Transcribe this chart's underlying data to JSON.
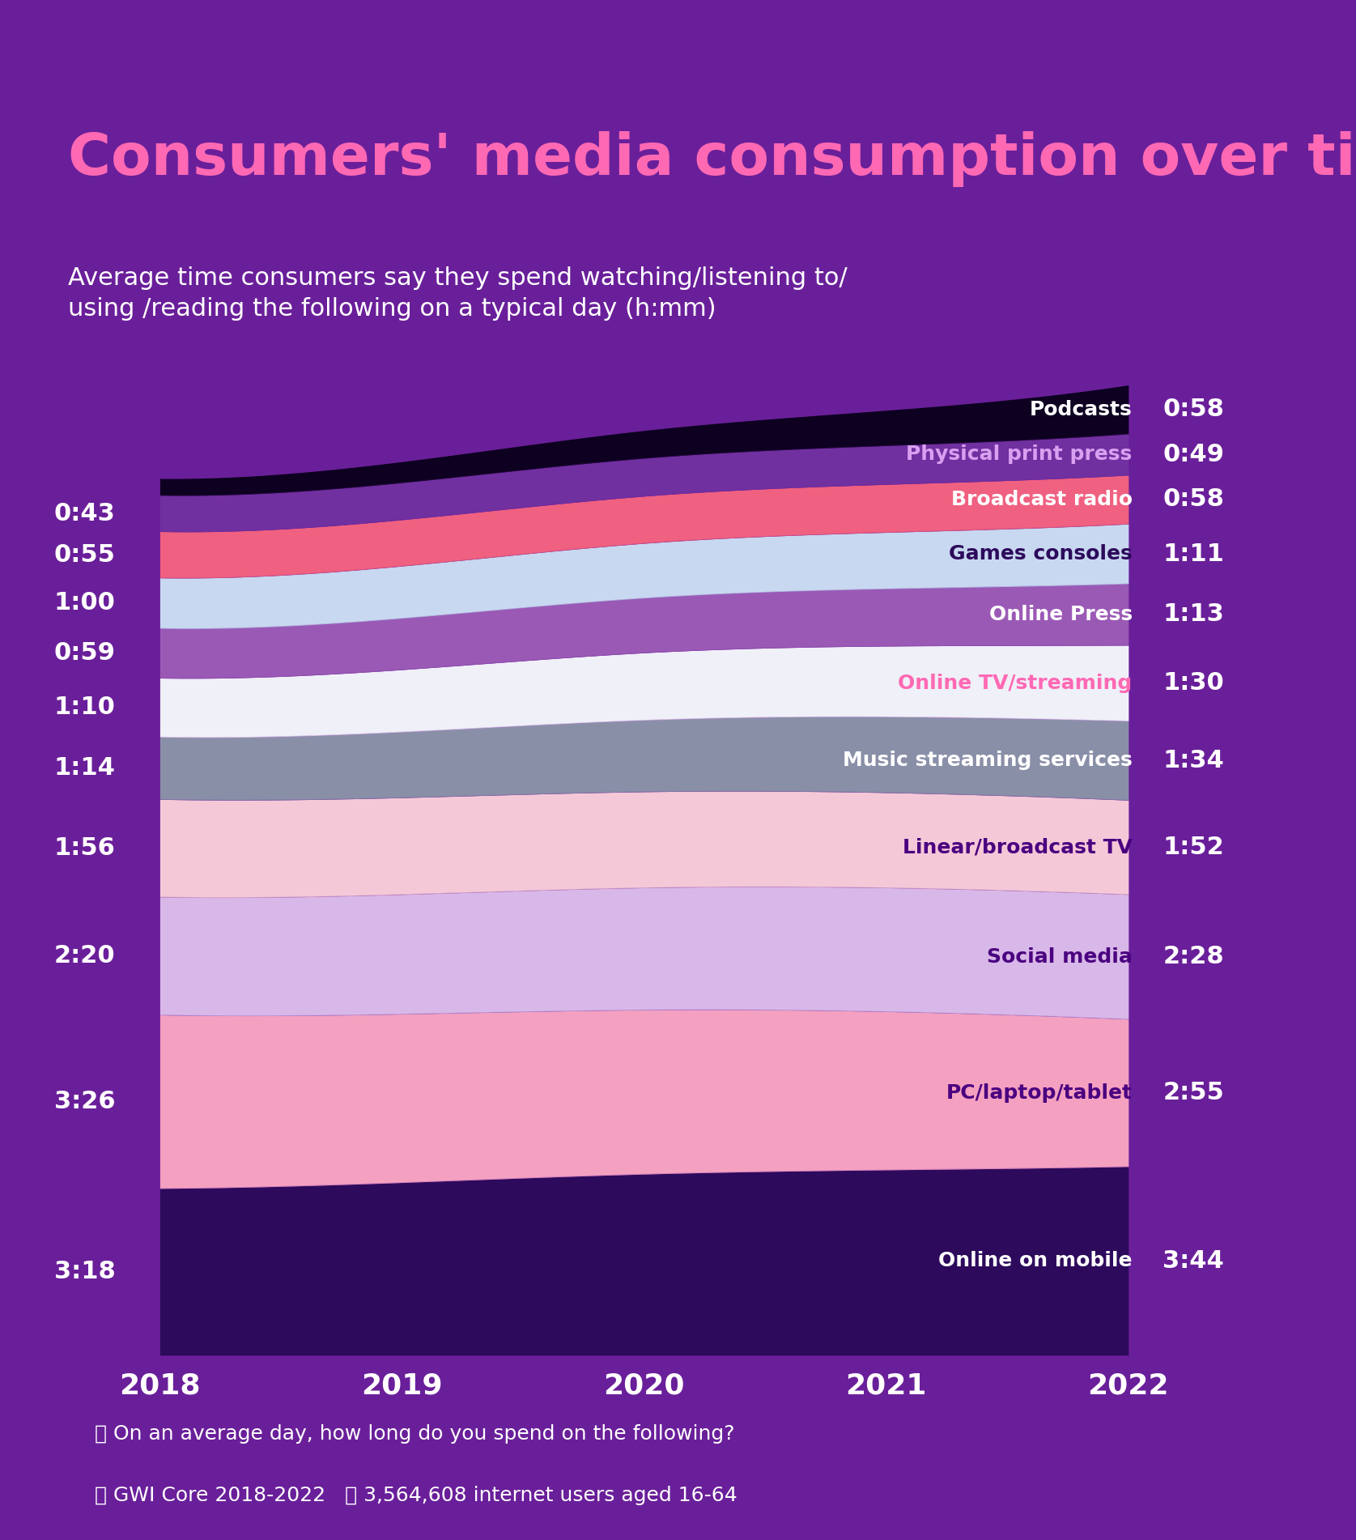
{
  "title": "Consumers' media consumption over time",
  "subtitle": "Average time consumers say they spend watching/listening to/\nusing /reading the following on a typical day (h:mm)",
  "background_color": "#6a1f9a",
  "chart_bg_color": "#6a1f9a",
  "years": [
    2018,
    2019,
    2020,
    2021,
    2022
  ],
  "layers": [
    {
      "name": "Online on mobile",
      "color": "#2d0a5c",
      "values_min": [
        198,
        205,
        215,
        220,
        224
      ],
      "label_color": "#ffffff",
      "left_label": "3:18",
      "right_label": "3:44",
      "label_text_color": "#ffffff"
    },
    {
      "name": "PC/laptop/tablet",
      "color": "#f4a0c0",
      "values_min": [
        206,
        200,
        195,
        188,
        175
      ],
      "label_color": "#4a0080",
      "left_label": "3:26",
      "right_label": "2:55",
      "label_text_color": "#4a0080"
    },
    {
      "name": "Social media",
      "color": "#d8b8e8",
      "values_min": [
        140,
        142,
        145,
        147,
        148
      ],
      "label_color": "#4a0080",
      "left_label": "2:20",
      "right_label": "2:28",
      "label_text_color": "#4a0080"
    },
    {
      "name": "Linear/broadcast TV",
      "color": "#f5c8d8",
      "values_min": [
        116,
        115,
        114,
        113,
        112
      ],
      "label_color": "#4a0080",
      "left_label": "1:56",
      "right_label": "1:52",
      "label_text_color": "#4a0080"
    },
    {
      "name": "Music streaming services",
      "color": "#8a8fa8",
      "values_min": [
        74,
        78,
        85,
        90,
        94
      ],
      "label_color": "#ffffff",
      "left_label": "1:14",
      "right_label": "1:34",
      "label_text_color": "#ffffff"
    },
    {
      "name": "Online TV/streaming",
      "color": "#f0f0f8",
      "values_min": [
        70,
        74,
        80,
        84,
        90
      ],
      "label_color": "#ff69b4",
      "left_label": "1:10",
      "right_label": "1:30",
      "label_text_color": "#ff69b4"
    },
    {
      "name": "Online Press",
      "color": "#9b59b6",
      "values_min": [
        59,
        61,
        65,
        68,
        73
      ],
      "label_color": "#ffffff",
      "left_label": "0:59",
      "right_label": "1:13",
      "label_text_color": "#ffffff"
    },
    {
      "name": "Games consoles",
      "color": "#c8d8f0",
      "values_min": [
        60,
        62,
        65,
        67,
        71
      ],
      "label_color": "#2d0a5c",
      "left_label": "1:00",
      "right_label": "1:11",
      "label_text_color": "#2d0a5c"
    },
    {
      "name": "Broadcast radio",
      "color": "#f06080",
      "values_min": [
        55,
        55,
        56,
        57,
        58
      ],
      "label_color": "#ffffff",
      "left_label": "0:55",
      "right_label": "0:58",
      "label_text_color": "#ffffff"
    },
    {
      "name": "Physical print press",
      "color": "#7030a0",
      "values_min": [
        43,
        44,
        45,
        46,
        49
      ],
      "label_color": "#d8a0f0",
      "left_label": "0:43",
      "right_label": "0:49",
      "label_text_color": "#d8a0f0"
    },
    {
      "name": "Podcasts",
      "color": "#0d0020",
      "values_min": [
        20,
        25,
        33,
        42,
        58
      ],
      "label_color": "#ffffff",
      "left_label": "",
      "right_label": "0:58",
      "label_text_color": "#ffffff"
    }
  ],
  "footer_text1": "On an average day, how long do you spend on the following?",
  "footer_text2": "GWI Core 2018-2022",
  "footer_text3": "3,564,608 internet users aged 16-64",
  "title_color": "#ff69b4",
  "subtitle_color": "#ffffff",
  "axis_label_color": "#ffffff",
  "year_label_color": "#ffffff"
}
